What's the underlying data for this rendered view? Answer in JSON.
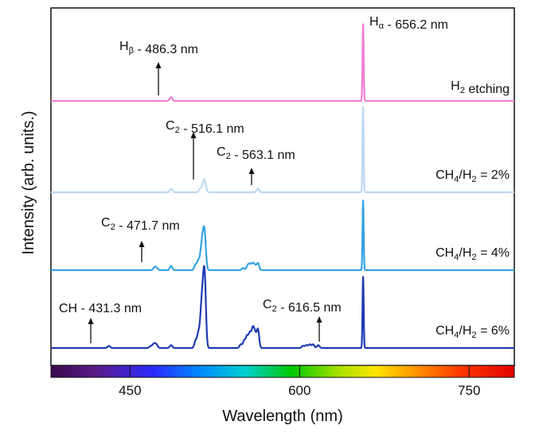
{
  "chart_data": {
    "type": "line",
    "title": "",
    "xlabel": "Wavelength (nm)",
    "ylabel": "Intensity (arb. units.)",
    "xlim": [
      380,
      790
    ],
    "x_ticks": [
      "450",
      "600",
      "750"
    ],
    "x_tick_values": [
      450,
      600,
      750
    ],
    "colorbar": "visible spectrum",
    "series": [
      {
        "name": "H2 etching",
        "label_main": "H",
        "label_sub": "2",
        "label_tail": " etching",
        "color": "#ee7fd2",
        "baseline": 0,
        "peaks": [
          [
            486.3,
            0.05
          ],
          [
            656.2,
            1.0
          ]
        ]
      },
      {
        "name": "CH4/H2 = 2%",
        "label_main": "CH",
        "label_sub": "4",
        "label_mid": "/H",
        "label_sub2": "2",
        "label_tail": " = 2%",
        "color": "#bcd8f2",
        "baseline": 0,
        "peaks": [
          [
            486.3,
            0.04
          ],
          [
            512,
            0.04
          ],
          [
            514.5,
            0.07
          ],
          [
            516.1,
            0.12
          ],
          [
            563.1,
            0.04
          ],
          [
            656.2,
            1.0
          ]
        ]
      },
      {
        "name": "CH4/H2 = 4%",
        "label_main": "CH",
        "label_sub": "4",
        "label_mid": "/H",
        "label_sub2": "2",
        "label_tail": " = 4%",
        "color": "#35a3df",
        "baseline": 0,
        "peaks": [
          [
            471.7,
            0.04
          ],
          [
            473.5,
            0.03
          ],
          [
            486.3,
            0.06
          ],
          [
            508,
            0.08
          ],
          [
            510.5,
            0.13
          ],
          [
            512.9,
            0.23
          ],
          [
            514.5,
            0.34
          ],
          [
            516.1,
            0.45
          ],
          [
            550,
            0.03
          ],
          [
            554,
            0.06
          ],
          [
            556,
            0.08
          ],
          [
            558.5,
            0.09
          ],
          [
            560.5,
            0.06
          ],
          [
            563.1,
            0.1
          ],
          [
            656.2,
            1.0
          ]
        ]
      },
      {
        "name": "CH4/H2 = 6%",
        "label_main": "CH",
        "label_sub": "4",
        "label_mid": "/H",
        "label_sub2": "2",
        "label_tail": " = 6%",
        "color": "#1f3ab3",
        "baseline": 0,
        "peaks": [
          [
            431.3,
            0.03
          ],
          [
            468,
            0.02
          ],
          [
            470,
            0.03
          ],
          [
            471.7,
            0.05
          ],
          [
            473.5,
            0.04
          ],
          [
            486.3,
            0.04
          ],
          [
            508,
            0.1
          ],
          [
            510.5,
            0.2
          ],
          [
            512.9,
            0.42
          ],
          [
            514.5,
            0.55
          ],
          [
            516.1,
            0.88
          ],
          [
            548,
            0.05
          ],
          [
            551,
            0.1
          ],
          [
            553.5,
            0.16
          ],
          [
            556,
            0.2
          ],
          [
            558.5,
            0.25
          ],
          [
            560.5,
            0.19
          ],
          [
            563.1,
            0.26
          ],
          [
            603,
            0.03
          ],
          [
            606,
            0.04
          ],
          [
            609,
            0.05
          ],
          [
            612,
            0.05
          ],
          [
            616.5,
            0.04
          ],
          [
            656.2,
            1.0
          ]
        ]
      }
    ],
    "annotations": [
      {
        "series": 0,
        "x": 486.3,
        "main": "H",
        "sub": "β",
        "tail": " - 486.3 nm"
      },
      {
        "series": 0,
        "x": 656.2,
        "main": "H",
        "sub": "α",
        "tail": " - 656.2 nm"
      },
      {
        "series": 1,
        "x": 516.1,
        "main": "C",
        "sub": "2",
        "tail": " - 516.1 nm"
      },
      {
        "series": 1,
        "x": 563.1,
        "main": "C",
        "sub": "2",
        "tail": " - 563.1 nm"
      },
      {
        "series": 2,
        "x": 471.7,
        "main": "C",
        "sub": "2",
        "tail": " - 471.7 nm"
      },
      {
        "series": 3,
        "x": 431.3,
        "main": "CH",
        "sub": "",
        "tail": " - 431.3 nm"
      },
      {
        "series": 3,
        "x": 616.5,
        "main": "C",
        "sub": "2",
        "tail": " - 616.5 nm"
      }
    ]
  }
}
